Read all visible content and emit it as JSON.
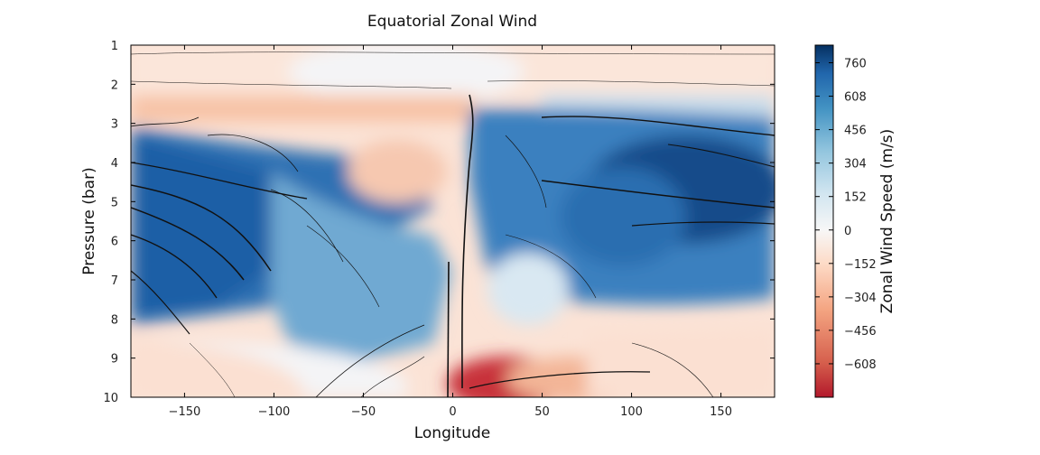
{
  "chart_data": {
    "type": "heatmap",
    "title": "Equatorial Zonal Wind",
    "xlabel": "Longitude",
    "ylabel": "Pressure (bar)",
    "colorbar_label": "Zonal Wind Speed (m/s)",
    "xlim": [
      -180,
      180
    ],
    "ylim": [
      10,
      1
    ],
    "x_ticks": [
      -150,
      -100,
      -50,
      0,
      50,
      100,
      150
    ],
    "x_tick_labels": [
      "−150",
      "−100",
      "−50",
      "0",
      "50",
      "100",
      "150"
    ],
    "y_ticks": [
      1,
      2,
      3,
      4,
      5,
      6,
      7,
      8,
      9,
      10
    ],
    "y_tick_labels": [
      "1",
      "2",
      "3",
      "4",
      "5",
      "6",
      "7",
      "8",
      "9",
      "10"
    ],
    "colorbar_range": [
      -760,
      840
    ],
    "colorbar_ticks": [
      760,
      608,
      456,
      304,
      152,
      0,
      -152,
      -304,
      -456,
      -608
    ],
    "colorbar_tick_labels": [
      "760",
      "608",
      "456",
      "304",
      "152",
      "0",
      "−152",
      "−304",
      "−456",
      "−608"
    ],
    "colormap": "RdBu",
    "colors": {
      "min": "#b2182b",
      "mid": "#f7f7f7",
      "max": "#053061"
    },
    "overlay": "streamlines",
    "grid": false
  }
}
